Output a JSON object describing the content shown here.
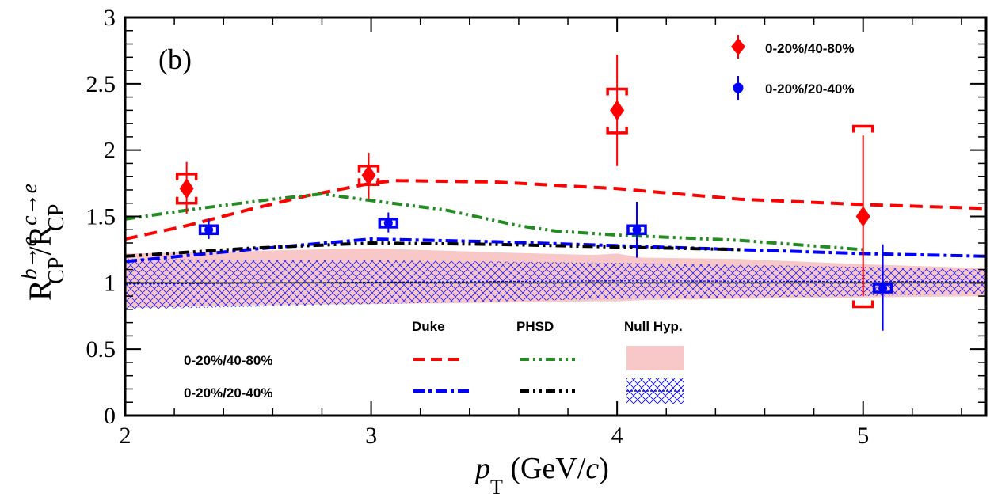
{
  "chart_data": {
    "type": "scatter",
    "panel_label": "(b)",
    "xlabel": {
      "main": "p",
      "sub": "T",
      "rest": " (GeV/",
      "italic": "c",
      "close": ")"
    },
    "ylabel": {
      "R": "R",
      "sup_b": "b→e",
      "sub_cp": "CP",
      "slash": "/",
      "sup_c": "c→e"
    },
    "xlim": [
      2,
      5.5
    ],
    "ylim": [
      0,
      3
    ],
    "xticks": [
      2,
      3,
      4,
      5
    ],
    "yticks": [
      0,
      0.5,
      1,
      1.5,
      2,
      2.5,
      3
    ],
    "ytick_labels": [
      "0",
      "0.5",
      "1",
      "1.5",
      "2",
      "2.5",
      "3"
    ],
    "series": [
      {
        "name": "0-20%/40-80%",
        "color": "#ff0000",
        "marker": "diamond",
        "points": [
          {
            "x": 2.25,
            "y": 1.71,
            "stat_lo": 1.52,
            "stat_hi": 1.91,
            "sys_lo": 1.6,
            "sys_hi": 1.82
          },
          {
            "x": 2.99,
            "y": 1.81,
            "stat_lo": 1.63,
            "stat_hi": 1.98,
            "sys_lo": 1.74,
            "sys_hi": 1.88
          },
          {
            "x": 4.0,
            "y": 2.3,
            "stat_lo": 1.88,
            "stat_hi": 2.72,
            "sys_lo": 2.13,
            "sys_hi": 2.46
          },
          {
            "x": 5.0,
            "y": 1.5,
            "stat_lo": 0.9,
            "stat_hi": 2.11,
            "sys_lo": 0.82,
            "sys_hi": 2.18
          }
        ]
      },
      {
        "name": "0-20%/20-40%",
        "color": "#0000ff",
        "marker": "circle",
        "points": [
          {
            "x": 2.34,
            "y": 1.4,
            "stat_lo": 1.33,
            "stat_hi": 1.48,
            "sys_lo": 1.37,
            "sys_hi": 1.43
          },
          {
            "x": 3.07,
            "y": 1.45,
            "stat_lo": 1.38,
            "stat_hi": 1.53,
            "sys_lo": 1.42,
            "sys_hi": 1.48
          },
          {
            "x": 4.08,
            "y": 1.4,
            "stat_lo": 1.19,
            "stat_hi": 1.61,
            "sys_lo": 1.37,
            "sys_hi": 1.43
          },
          {
            "x": 5.08,
            "y": 0.96,
            "stat_lo": 0.64,
            "stat_hi": 1.29,
            "sys_lo": 0.93,
            "sys_hi": 0.99
          }
        ]
      }
    ],
    "models": [
      {
        "name": "Duke 0-20%/40-80%",
        "color": "#ff0000",
        "style": "dashed",
        "x": [
          2.0,
          2.25,
          2.5,
          2.75,
          3.0,
          3.1,
          3.5,
          4.0,
          4.5,
          5.0,
          5.5
        ],
        "y": [
          1.33,
          1.43,
          1.55,
          1.66,
          1.75,
          1.77,
          1.76,
          1.71,
          1.63,
          1.59,
          1.56
        ]
      },
      {
        "name": "PHSD 0-20%/40-80%",
        "color": "#228b22",
        "style": "dashdotdot",
        "x": [
          2.0,
          2.3,
          2.6,
          2.8,
          3.0,
          3.3,
          3.6,
          3.75,
          4.0,
          4.5,
          5.0
        ],
        "y": [
          1.48,
          1.56,
          1.63,
          1.67,
          1.62,
          1.55,
          1.43,
          1.39,
          1.36,
          1.32,
          1.25
        ]
      },
      {
        "name": "Duke 0-20%/20-40%",
        "color": "#0000ff",
        "style": "dashdot",
        "x": [
          2.0,
          2.5,
          3.0,
          3.5,
          4.0,
          4.5,
          5.0,
          5.5
        ],
        "y": [
          1.16,
          1.25,
          1.33,
          1.31,
          1.28,
          1.25,
          1.22,
          1.2
        ]
      },
      {
        "name": "PHSD 0-20%/20-40%",
        "color": "#000000",
        "style": "dashdotdot",
        "x": [
          2.0,
          2.5,
          3.0,
          3.5,
          4.0,
          4.5
        ],
        "y": [
          1.2,
          1.26,
          1.3,
          1.29,
          1.27,
          1.25
        ]
      }
    ],
    "null_hyp_40_80": {
      "x": [
        2.0,
        2.5,
        3.0,
        3.5,
        3.9,
        4.0,
        4.1,
        4.5,
        5.0,
        5.5
      ],
      "lo": [
        0.81,
        0.83,
        0.84,
        0.85,
        0.86,
        0.86,
        0.87,
        0.88,
        0.89,
        0.9
      ],
      "hi": [
        1.22,
        1.24,
        1.26,
        1.23,
        1.21,
        1.22,
        1.19,
        1.18,
        1.14,
        1.11
      ],
      "color": "#f8c8c8"
    },
    "null_hyp_20_40": {
      "x": [
        2.0,
        3.0,
        4.0,
        5.0,
        5.5
      ],
      "lo": [
        0.8,
        0.84,
        0.88,
        0.9,
        0.92
      ],
      "hi": [
        1.18,
        1.17,
        1.15,
        1.12,
        1.1
      ],
      "color": "#0000ff"
    },
    "reference_line_y": 1,
    "legend_top": [
      {
        "label": "0-20%/40-80%",
        "color": "#ff0000",
        "marker": "diamond"
      },
      {
        "label": "0-20%/20-40%",
        "color": "#0000ff",
        "marker": "circle"
      }
    ],
    "legend_models": {
      "headers": [
        "Duke",
        "PHSD",
        "Null Hyp."
      ],
      "rows": [
        "0-20%/40-80%",
        "0-20%/20-40%"
      ]
    }
  }
}
